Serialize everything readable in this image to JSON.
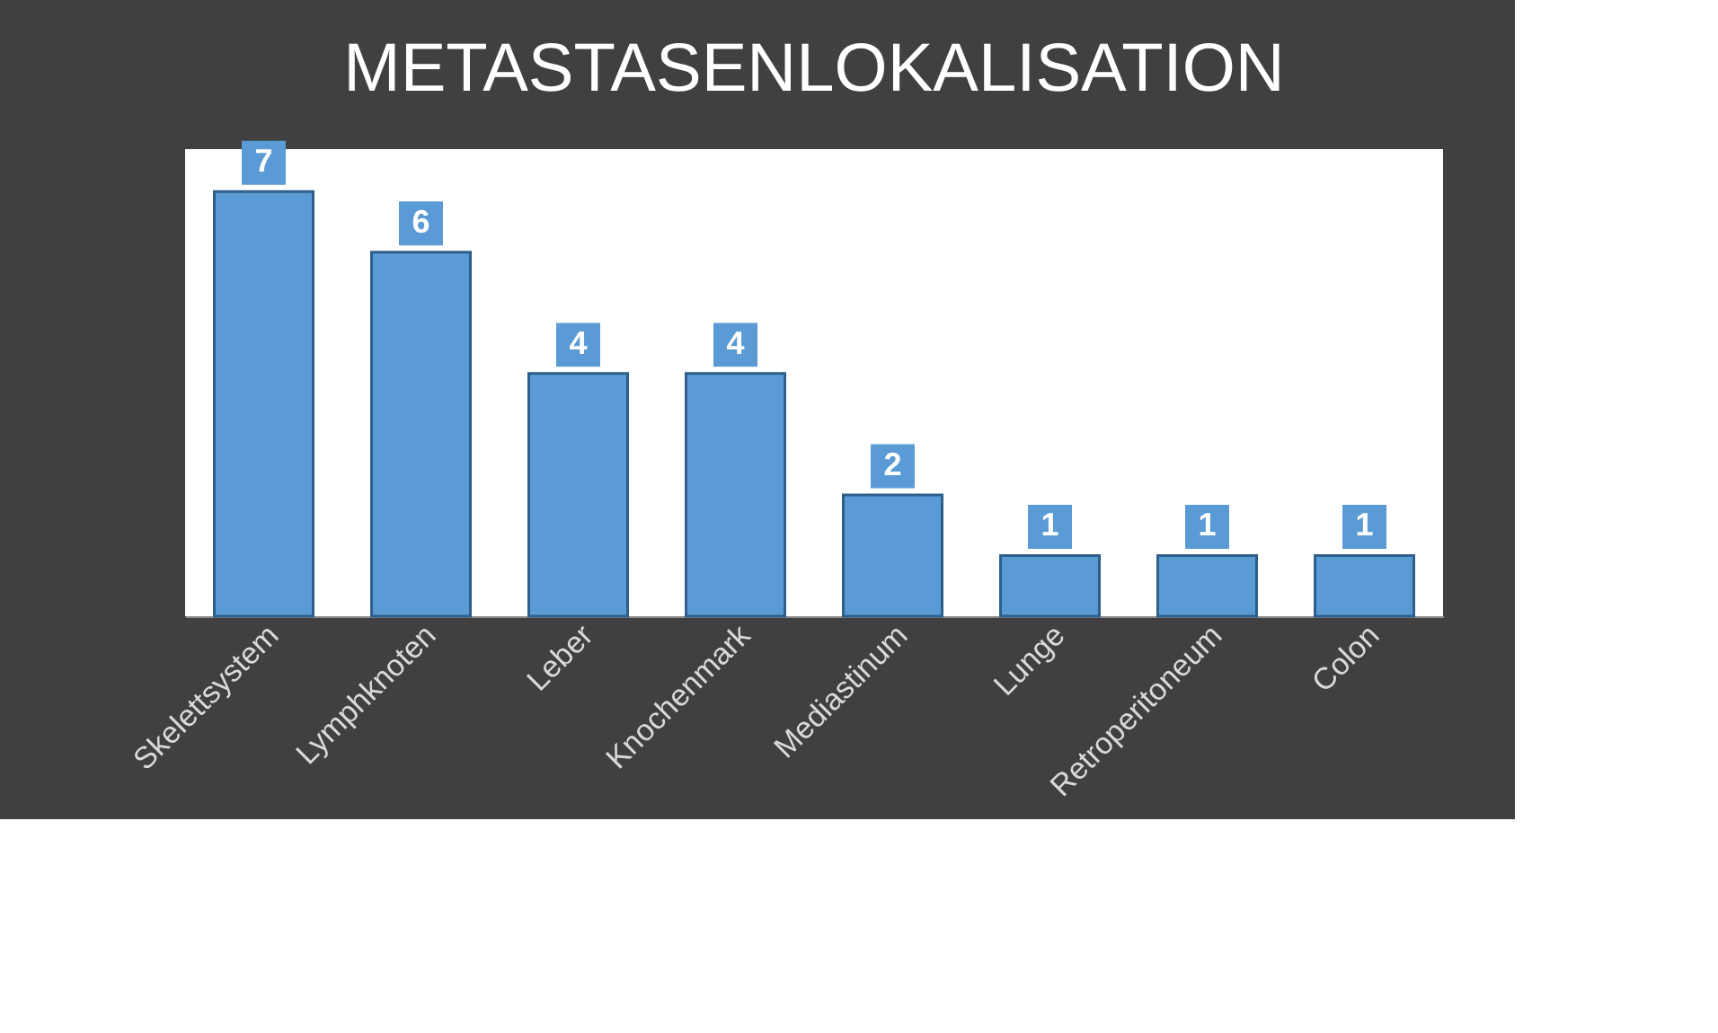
{
  "chart_data": {
    "type": "bar",
    "title": "METASTASENLOKALISATION",
    "categories": [
      "Skelettsystem",
      "Lymphknoten",
      "Leber",
      "Knochenmark",
      "Mediastinum",
      "Lunge",
      "Retroperitoneum",
      "Colon"
    ],
    "values": [
      7,
      6,
      4,
      4,
      2,
      1,
      1,
      1
    ],
    "color": "#5b9bd5",
    "data_labels": true,
    "grid": false,
    "tick_labels": "x"
  }
}
